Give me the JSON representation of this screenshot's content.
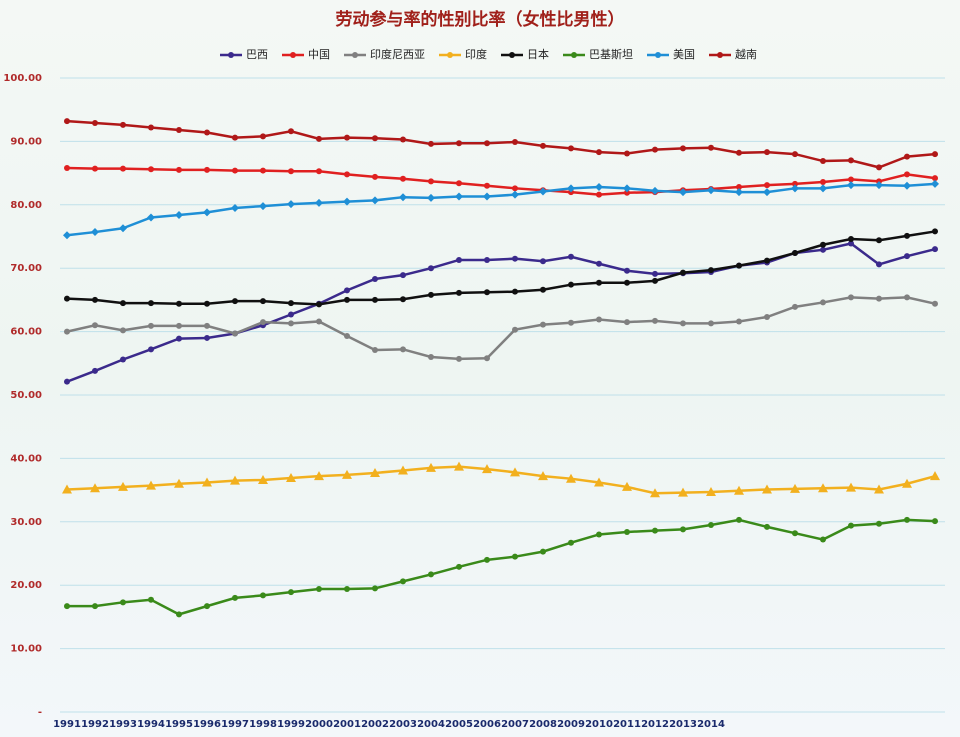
{
  "chart_data": {
    "type": "line",
    "title": "劳动参与率的性别比率（女性比男性）",
    "categories": [
      "1991",
      "1992",
      "1993",
      "1994",
      "1995",
      "1996",
      "1997",
      "1998",
      "1999",
      "2000",
      "2001",
      "2002",
      "2003",
      "2004",
      "2005",
      "2006",
      "2007",
      "2008",
      "2009",
      "2010",
      "2011",
      "2012",
      "2013",
      "2014",
      null,
      null,
      null,
      null,
      null,
      null,
      null,
      null
    ],
    "series": [
      {
        "name": "巴西",
        "color": "#3b2a8c",
        "marker": "circle",
        "values": [
          52.1,
          53.8,
          55.6,
          57.2,
          58.9,
          59.0,
          59.7,
          61.0,
          62.7,
          64.4,
          66.5,
          68.3,
          68.9,
          70.0,
          71.3,
          71.3,
          71.5,
          71.1,
          71.8,
          70.7,
          69.6,
          69.1,
          69.2,
          69.4,
          70.4,
          70.9,
          72.4,
          72.9,
          73.9,
          70.6,
          71.9,
          73.0
        ]
      },
      {
        "name": "中国",
        "color": "#e02020",
        "marker": "circle",
        "values": [
          85.8,
          85.7,
          85.7,
          85.6,
          85.5,
          85.5,
          85.4,
          85.4,
          85.3,
          85.3,
          84.8,
          84.4,
          84.1,
          83.7,
          83.4,
          83.0,
          82.6,
          82.3,
          82.0,
          81.6,
          81.9,
          82.0,
          82.3,
          82.5,
          82.8,
          83.1,
          83.3,
          83.6,
          84.0,
          83.7,
          84.8,
          84.2
        ]
      },
      {
        "name": "印度尼西亚",
        "color": "#808080",
        "marker": "circle",
        "values": [
          60.0,
          61.0,
          60.2,
          60.9,
          60.9,
          60.9,
          59.7,
          61.5,
          61.3,
          61.6,
          59.3,
          57.1,
          57.2,
          56.0,
          55.7,
          55.8,
          60.3,
          61.1,
          61.4,
          61.9,
          61.5,
          61.7,
          61.3,
          61.3,
          61.6,
          62.3,
          63.9,
          64.6,
          65.4,
          65.2,
          65.4,
          64.4
        ]
      },
      {
        "name": "印度",
        "color": "#f2b01e",
        "marker": "triangle",
        "values": [
          35.1,
          35.3,
          35.5,
          35.7,
          36.0,
          36.2,
          36.5,
          36.6,
          36.9,
          37.2,
          37.4,
          37.7,
          38.1,
          38.5,
          38.7,
          38.3,
          37.8,
          37.2,
          36.8,
          36.2,
          35.5,
          34.5,
          34.6,
          34.7,
          34.9,
          35.1,
          35.2,
          35.3,
          35.4,
          35.1,
          36.0,
          37.2
        ]
      },
      {
        "name": "日本",
        "color": "#101010",
        "marker": "circle",
        "values": [
          65.2,
          65.0,
          64.5,
          64.5,
          64.4,
          64.4,
          64.8,
          64.8,
          64.5,
          64.3,
          65.0,
          65.0,
          65.1,
          65.8,
          66.1,
          66.2,
          66.3,
          66.6,
          67.4,
          67.7,
          67.7,
          68.0,
          69.3,
          69.7,
          70.4,
          71.2,
          72.4,
          73.7,
          74.6,
          74.4,
          75.1,
          75.8
        ]
      },
      {
        "name": "巴基斯坦",
        "color": "#3a8a1a",
        "marker": "circle",
        "values": [
          16.7,
          16.7,
          17.3,
          17.7,
          15.4,
          16.7,
          18.0,
          18.4,
          18.9,
          19.4,
          19.4,
          19.5,
          20.6,
          21.7,
          22.9,
          24.0,
          24.5,
          25.3,
          26.7,
          28.0,
          28.4,
          28.6,
          28.8,
          29.5,
          30.3,
          29.2,
          28.2,
          27.2,
          29.4,
          29.7,
          30.3,
          30.1
        ]
      },
      {
        "name": "美国",
        "color": "#1f8fd6",
        "marker": "diamond",
        "values": [
          75.2,
          75.7,
          76.3,
          78.0,
          78.4,
          78.8,
          79.5,
          79.8,
          80.1,
          80.3,
          80.5,
          80.7,
          81.2,
          81.1,
          81.3,
          81.3,
          81.6,
          82.1,
          82.6,
          82.8,
          82.6,
          82.2,
          82.0,
          82.3,
          82.0,
          82.0,
          82.6,
          82.6,
          83.1,
          83.1,
          83.0,
          83.3
        ]
      },
      {
        "name": "越南",
        "color": "#b01818",
        "marker": "circle",
        "values": [
          93.2,
          92.9,
          92.6,
          92.2,
          91.8,
          91.4,
          90.6,
          90.8,
          91.6,
          90.4,
          90.6,
          90.5,
          90.3,
          89.6,
          89.7,
          89.7,
          89.9,
          89.3,
          88.9,
          88.3,
          88.1,
          88.7,
          88.9,
          89.0,
          88.2,
          88.3,
          88.0,
          86.9,
          87.0,
          85.9,
          87.6,
          88.0
        ]
      }
    ],
    "ylim": [
      0,
      100
    ],
    "yticks": [
      {
        "value": 0,
        "label": "-"
      },
      {
        "value": 10,
        "label": "10.00"
      },
      {
        "value": 20,
        "label": "20.00"
      },
      {
        "value": 30,
        "label": "30.00"
      },
      {
        "value": 40,
        "label": "40.00"
      },
      {
        "value": 50,
        "label": "50.00"
      },
      {
        "value": 60,
        "label": "60.00"
      },
      {
        "value": 70,
        "label": "70.00"
      },
      {
        "value": 80,
        "label": "80.00"
      },
      {
        "value": 90,
        "label": "90.00"
      },
      {
        "value": 100,
        "label": "100.00"
      }
    ],
    "grid": true,
    "legend": "top"
  }
}
